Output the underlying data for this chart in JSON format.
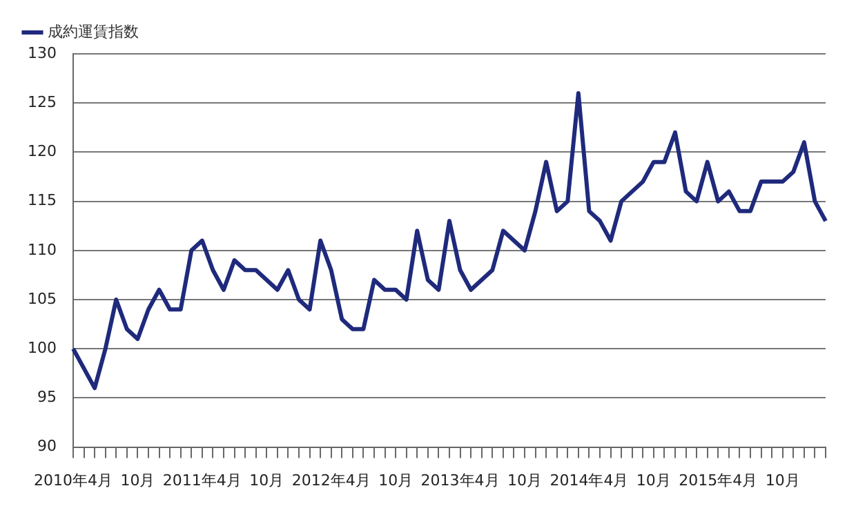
{
  "chart_data": {
    "type": "line",
    "categories": [
      "2010年4月",
      null,
      null,
      null,
      null,
      null,
      "10月",
      null,
      null,
      null,
      null,
      null,
      "2011年4月",
      null,
      null,
      null,
      null,
      null,
      "10月",
      null,
      null,
      null,
      null,
      null,
      "2012年4月",
      null,
      null,
      null,
      null,
      null,
      "10月",
      null,
      null,
      null,
      null,
      null,
      "2013年4月",
      null,
      null,
      null,
      null,
      null,
      "10月",
      null,
      null,
      null,
      null,
      null,
      "2014年4月",
      null,
      null,
      null,
      null,
      null,
      "10月",
      null,
      null,
      null,
      null,
      null,
      "2015年4月",
      null,
      null,
      null,
      null,
      null,
      "10月",
      null,
      null,
      null,
      null
    ],
    "series": [
      {
        "name": "成約運賃指数",
        "color": "#1f2a7c",
        "values": [
          100,
          98,
          96,
          100,
          105,
          102,
          101,
          104,
          106,
          104,
          104,
          110,
          111,
          108,
          106,
          109,
          108,
          108,
          107,
          106,
          108,
          105,
          104,
          111,
          108,
          103,
          102,
          102,
          107,
          106,
          106,
          105,
          112,
          107,
          106,
          113,
          108,
          106,
          107,
          108,
          112,
          111,
          110,
          114,
          119,
          114,
          115,
          126,
          114,
          113,
          111,
          115,
          116,
          117,
          119,
          119,
          122,
          116,
          115,
          119,
          115,
          116,
          114,
          114,
          117,
          117,
          117,
          118,
          121,
          115,
          113
        ]
      }
    ],
    "ylim": [
      90,
      130
    ],
    "yticks": [
      90,
      95,
      100,
      105,
      110,
      115,
      120,
      125,
      130
    ],
    "grid": "y",
    "legend": "top left",
    "marker": "none",
    "line_style": "solid"
  }
}
